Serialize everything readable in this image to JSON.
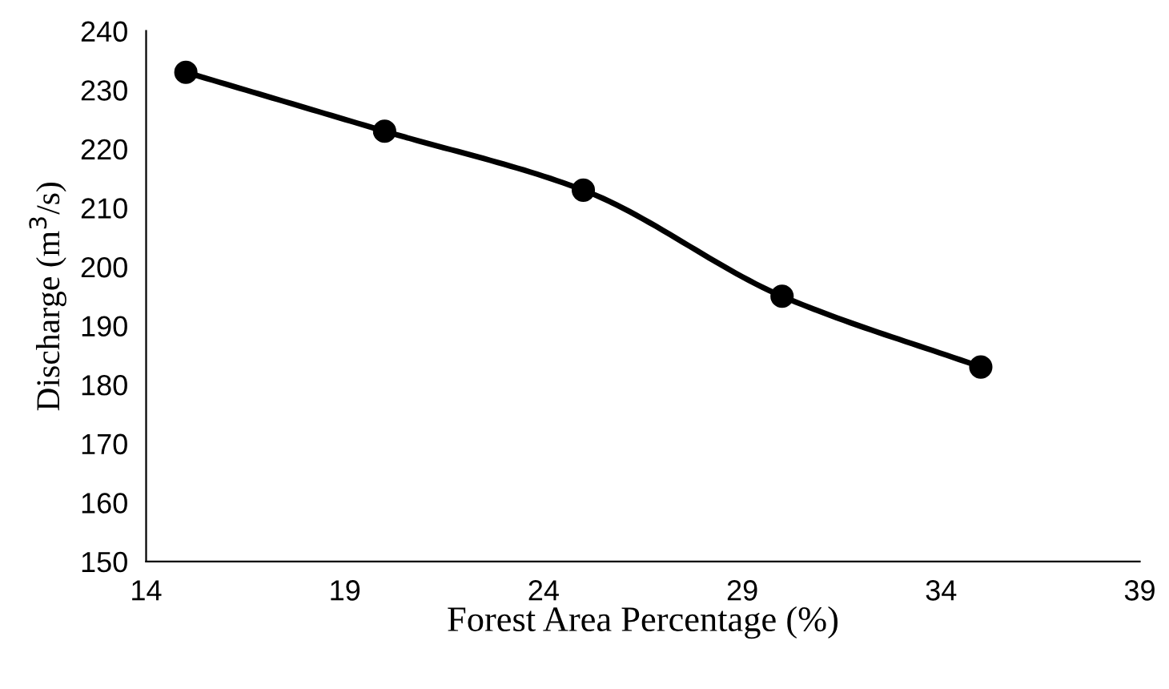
{
  "chart_data": {
    "type": "line",
    "xlabel": "Forest Area Percentage (%)",
    "ylabel": "Discharge (m$^{3}$/s)",
    "x": [
      15,
      20,
      25,
      30,
      35
    ],
    "series": [
      {
        "color": "#000000",
        "values": [
          233,
          223,
          213,
          195,
          183
        ]
      }
    ],
    "xlim": [
      14,
      39
    ],
    "xticks": [
      14,
      19,
      24,
      29,
      34,
      39
    ],
    "ylim": [
      150,
      240
    ],
    "yticks": [
      150,
      160,
      170,
      180,
      190,
      200,
      210,
      220,
      230,
      240
    ],
    "grid": false,
    "legend": false,
    "marker": "circle",
    "line_style": "solid"
  }
}
